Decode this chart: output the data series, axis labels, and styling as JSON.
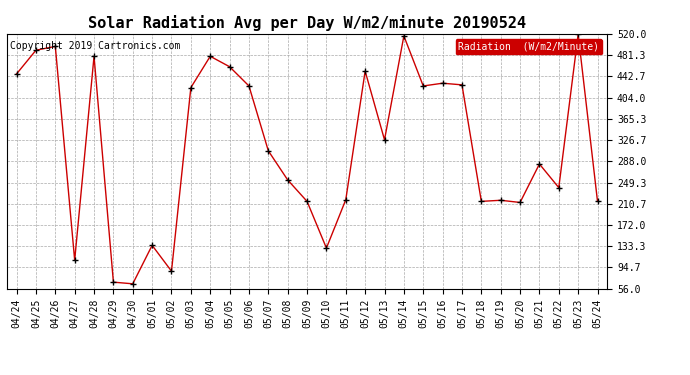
{
  "title": "Solar Radiation Avg per Day W/m2/minute 20190524",
  "copyright": "Copyright 2019 Cartronics.com",
  "legend_label": "Radiation  (W/m2/Minute)",
  "x_labels": [
    "04/24",
    "04/25",
    "04/26",
    "04/27",
    "04/28",
    "04/29",
    "04/30",
    "05/01",
    "05/02",
    "05/03",
    "05/04",
    "05/05",
    "05/06",
    "05/07",
    "05/08",
    "05/09",
    "05/10",
    "05/11",
    "05/12",
    "05/13",
    "05/14",
    "05/15",
    "05/16",
    "05/17",
    "05/18",
    "05/19",
    "05/20",
    "05/21",
    "05/22",
    "05/23",
    "05/24"
  ],
  "y_values": [
    447,
    490,
    497,
    108,
    479,
    68,
    65,
    135,
    88,
    422,
    479,
    460,
    425,
    307,
    254,
    215,
    130,
    218,
    452,
    327,
    516,
    425,
    430,
    427,
    215,
    217,
    213,
    283,
    240,
    519,
    215
  ],
  "y_ticks": [
    56.0,
    94.7,
    133.3,
    172.0,
    210.7,
    249.3,
    288.0,
    326.7,
    365.3,
    404.0,
    442.7,
    481.3,
    520.0
  ],
  "ylim": [
    56.0,
    520.0
  ],
  "line_color": "#cc0000",
  "marker_color": "#000000",
  "background_color": "#ffffff",
  "grid_color": "#aaaaaa",
  "legend_bg": "#cc0000",
  "legend_text_color": "#ffffff",
  "title_fontsize": 11,
  "tick_fontsize": 7,
  "copyright_fontsize": 7
}
